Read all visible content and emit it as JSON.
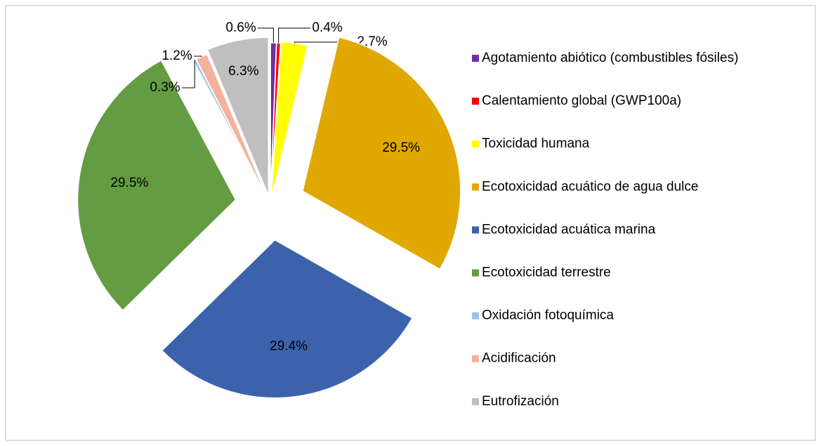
{
  "chart_data": {
    "type": "pie",
    "categories": [
      "Agotamiento abiótico (combustibles fósiles)",
      "Calentamiento global (GWP100a)",
      "Toxicidad humana",
      "Ecotoxicidad acuático de agua dulce",
      "Ecotoxicidad acuática marina",
      "Ecotoxicidad terrestre",
      "Oxidación fotoquímica",
      "Acidificación",
      "Eutrofización"
    ],
    "values": [
      0.6,
      0.4,
      2.7,
      29.5,
      29.4,
      29.5,
      0.3,
      1.2,
      6.3
    ],
    "value_labels": [
      "0.6%",
      "0.4%",
      "2.7%",
      "29.5%",
      "29.4%",
      "29.5%",
      "0.3%",
      "1.2%",
      "6.3%"
    ],
    "colors": [
      "#7030a0",
      "#ff0000",
      "#ffff00",
      "#e0a800",
      "#3c62ab",
      "#639c42",
      "#9dc3e6",
      "#f4b19b",
      "#bfbfbf"
    ],
    "legend": "right"
  }
}
